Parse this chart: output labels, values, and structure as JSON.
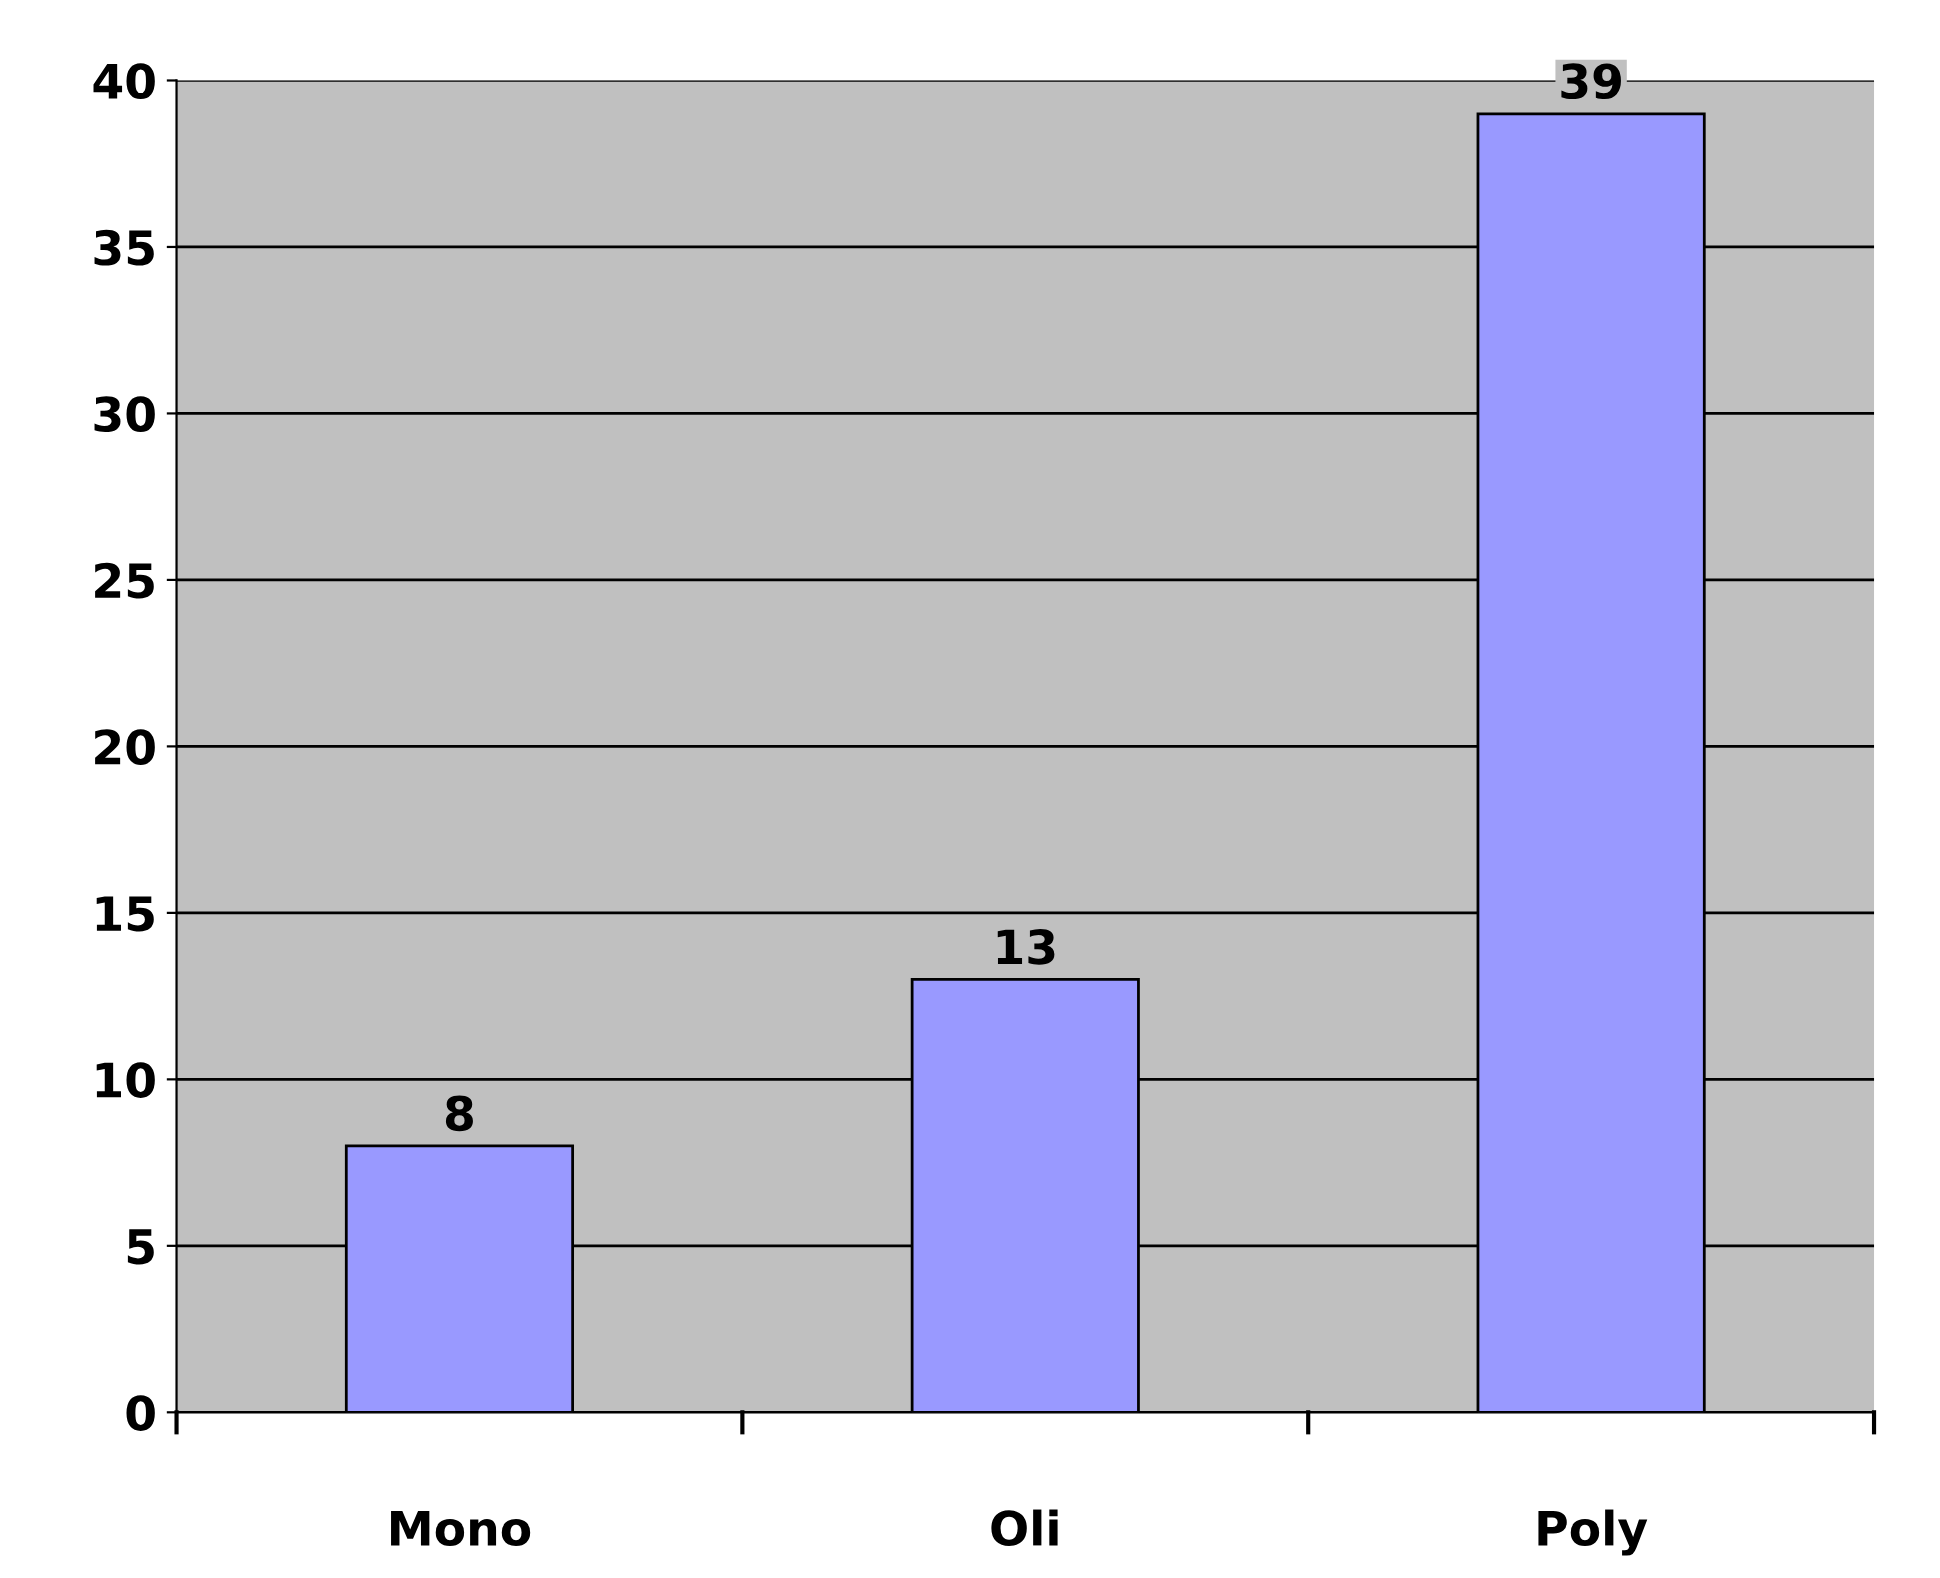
{
  "chart_data": {
    "type": "bar",
    "categories": [
      "Mono",
      "Oli",
      "Poly"
    ],
    "values": [
      8,
      13,
      39
    ],
    "color": "#9999ff",
    "ylim": [
      0,
      40
    ],
    "yticks": [
      0,
      5,
      10,
      15,
      20,
      25,
      30,
      35,
      40
    ],
    "grid": "y",
    "data_labels": true
  }
}
